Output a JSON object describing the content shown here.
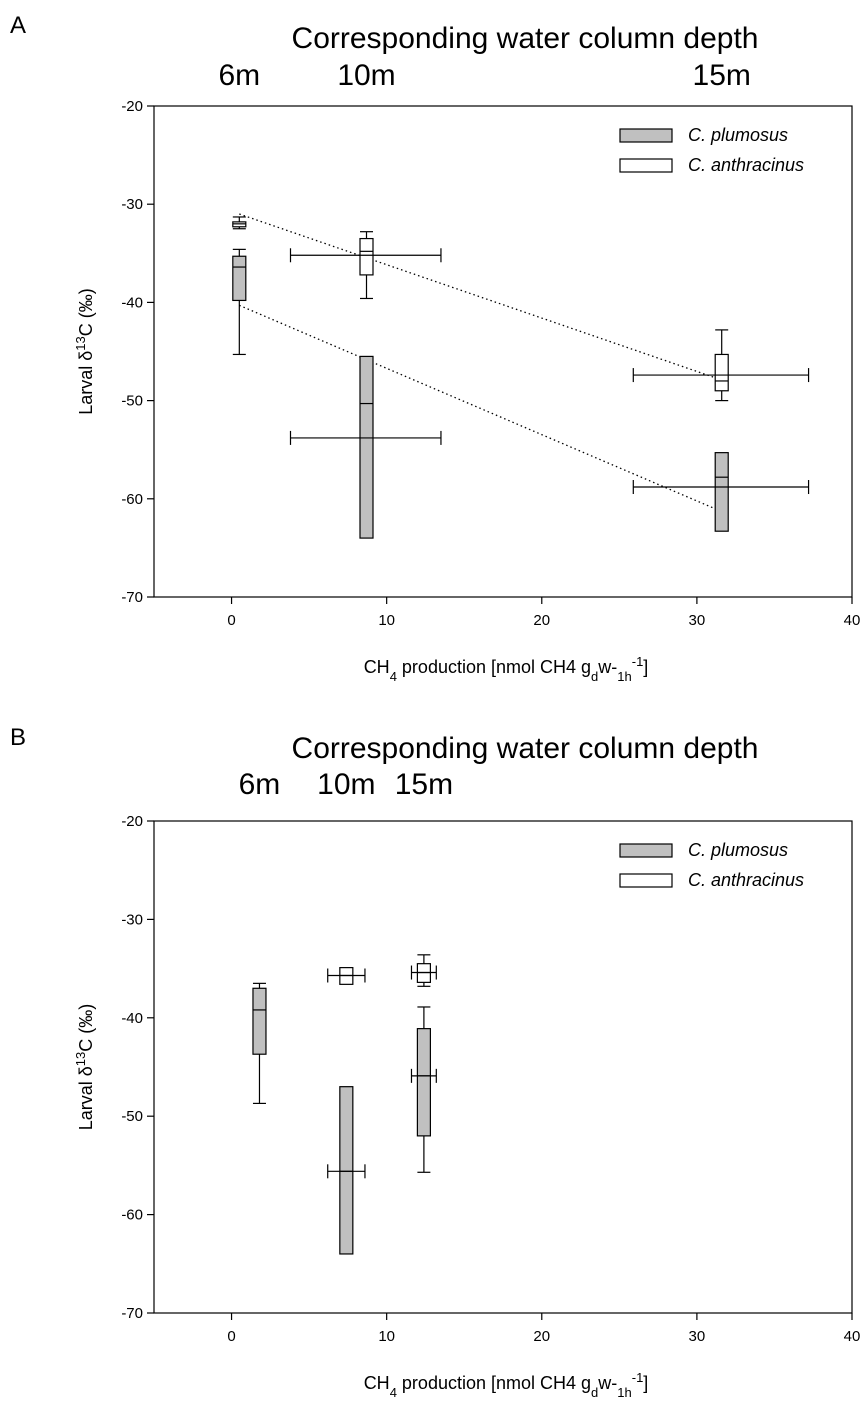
{
  "colors": {
    "plumosus_fill": "#c0c0c0",
    "anthracinus_fill": "#ffffff",
    "stroke": "#000000",
    "background": "#ffffff"
  },
  "chart_data": [
    {
      "type": "boxplot",
      "panel_label": "A",
      "top_title": "Corresponding water column depth",
      "depth_labels": [
        {
          "label": "6m",
          "x": 0.5
        },
        {
          "label": "10m",
          "x": 8.7
        },
        {
          "label": "15m",
          "x": 31.6
        }
      ],
      "xlabel": "CH4 production [nmol CH4 gdw-1h-1]",
      "ylabel": "Larval δ13C (‰)",
      "xlim": [
        -5,
        40
      ],
      "ylim": [
        -70,
        -20
      ],
      "xticks": [
        0,
        10,
        20,
        30,
        40
      ],
      "yticks": [
        -70,
        -60,
        -50,
        -40,
        -30,
        -20
      ],
      "legend_position": "top-right",
      "series": [
        {
          "name": "C. plumosus",
          "fill": "gray",
          "boxes": [
            {
              "x": 0.5,
              "whisker_low": -45.3,
              "q1": -39.8,
              "median": -36.4,
              "q3": -35.3,
              "whisker_high": -34.6
            },
            {
              "x": 8.7,
              "whisker_low": -64.0,
              "q1": -64.0,
              "median": -50.3,
              "q3": -45.5,
              "whisker_high": -45.5,
              "xerr": [
                3.8,
                13.5
              ],
              "xerr_y": -53.8
            },
            {
              "x": 31.6,
              "whisker_low": -63.3,
              "q1": -63.3,
              "median": -57.8,
              "q3": -55.3,
              "whisker_high": -55.3,
              "xerr": [
                25.9,
                37.2
              ],
              "xerr_y": -58.8
            }
          ],
          "trendline": {
            "from": [
              0.5,
              -40.3
            ],
            "to": [
              31.6,
              -61.3
            ]
          }
        },
        {
          "name": "C. anthracinus",
          "fill": "white",
          "boxes": [
            {
              "x": 0.5,
              "whisker_low": -32.5,
              "q1": -32.3,
              "median": -32.0,
              "q3": -31.8,
              "whisker_high": -31.3
            },
            {
              "x": 8.7,
              "whisker_low": -39.6,
              "q1": -37.2,
              "median": -34.8,
              "q3": -33.5,
              "whisker_high": -32.8,
              "xerr": [
                3.8,
                13.5
              ],
              "xerr_y": -35.2
            },
            {
              "x": 31.6,
              "whisker_low": -50.0,
              "q1": -49.0,
              "median": -48.0,
              "q3": -45.3,
              "whisker_high": -42.8,
              "xerr": [
                25.9,
                37.2
              ],
              "xerr_y": -47.4
            }
          ],
          "trendline": {
            "from": [
              0.5,
              -31.0
            ],
            "to": [
              31.6,
              -47.9
            ]
          }
        }
      ]
    },
    {
      "type": "boxplot",
      "panel_label": "B",
      "top_title": "Corresponding water column depth",
      "depth_labels": [
        {
          "label": "6m",
          "x": 1.8
        },
        {
          "label": "10m",
          "x": 7.4
        },
        {
          "label": "15m",
          "x": 12.4
        }
      ],
      "xlabel": "CH4 production [nmol CH4 gdw-1h-1]",
      "ylabel": "Larval δ13C (‰)",
      "xlim": [
        -5,
        40
      ],
      "ylim": [
        -70,
        -20
      ],
      "xticks": [
        0,
        10,
        20,
        30,
        40
      ],
      "yticks": [
        -70,
        -60,
        -50,
        -40,
        -30,
        -20
      ],
      "legend_position": "top-right",
      "series": [
        {
          "name": "C. plumosus",
          "fill": "gray",
          "boxes": [
            {
              "x": 1.8,
              "whisker_low": -48.7,
              "q1": -43.7,
              "median": -39.2,
              "q3": -37.0,
              "whisker_high": -36.5
            },
            {
              "x": 7.4,
              "whisker_low": -64.0,
              "q1": -64.0,
              "median": -55.6,
              "q3": -47.0,
              "whisker_high": -47.0,
              "xerr": [
                6.2,
                8.6
              ],
              "xerr_y": -55.6
            },
            {
              "x": 12.4,
              "whisker_low": -55.7,
              "q1": -52.0,
              "median": -45.9,
              "q3": -41.1,
              "whisker_high": -38.9,
              "xerr": [
                11.6,
                13.2
              ],
              "xerr_y": -45.9
            }
          ]
        },
        {
          "name": "C. anthracinus",
          "fill": "white",
          "boxes": [
            {
              "x": 7.4,
              "whisker_low": -36.6,
              "q1": -36.6,
              "median": -35.7,
              "q3": -34.9,
              "whisker_high": -34.9,
              "xerr": [
                6.2,
                8.6
              ],
              "xerr_y": -35.7
            },
            {
              "x": 12.4,
              "whisker_low": -36.8,
              "q1": -36.4,
              "median": -35.4,
              "q3": -34.5,
              "whisker_high": -33.6,
              "xerr": [
                11.6,
                13.2
              ],
              "xerr_y": -35.4
            }
          ]
        }
      ]
    }
  ]
}
